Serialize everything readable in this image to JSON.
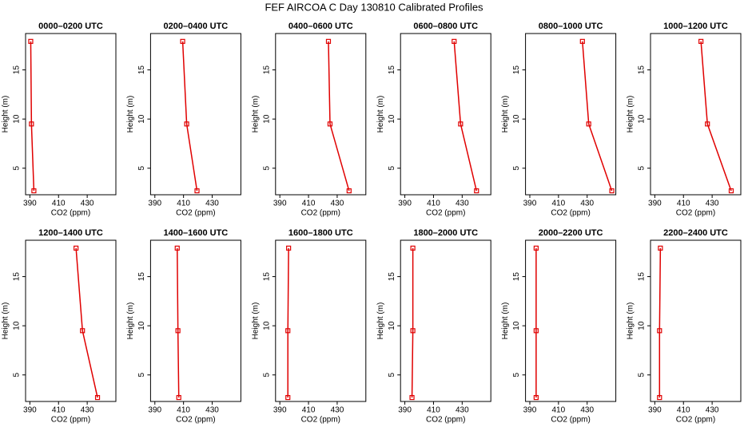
{
  "title": "FEF AIRCOA C  Day 130810  Calibrated Profiles",
  "chart_data": [
    {
      "type": "line",
      "title": "0000–0200 UTC",
      "x": [
        390.6,
        391.1,
        392.8
      ],
      "values": [
        17.9,
        9.5,
        2.7
      ],
      "color": "#e00000",
      "xlabel": "CO2 (ppm)",
      "ylabel": "Height (m)",
      "xlim": [
        387,
        450
      ],
      "ylim": [
        2.3,
        18.7
      ],
      "xticks": [
        390,
        410,
        430
      ],
      "yticks": [
        5,
        10,
        15
      ]
    },
    {
      "type": "line",
      "title": "0200–0400 UTC",
      "x": [
        409.4,
        412.2,
        419.4
      ],
      "values": [
        17.9,
        9.5,
        2.7
      ],
      "color": "#e00000",
      "xlabel": "CO2 (ppm)",
      "ylabel": "Height (m)",
      "xlim": [
        387,
        450
      ],
      "ylim": [
        2.3,
        18.7
      ],
      "xticks": [
        390,
        410,
        430
      ],
      "yticks": [
        5,
        10,
        15
      ]
    },
    {
      "type": "line",
      "title": "0400–0600 UTC",
      "x": [
        423.9,
        425,
        438.3
      ],
      "values": [
        17.9,
        9.5,
        2.7
      ],
      "color": "#e00000",
      "xlabel": "CO2 (ppm)",
      "ylabel": "Height (m)",
      "xlim": [
        387,
        450
      ],
      "ylim": [
        2.3,
        18.7
      ],
      "xticks": [
        390,
        410,
        430
      ],
      "yticks": [
        5,
        10,
        15
      ]
    },
    {
      "type": "line",
      "title": "0600–0800 UTC",
      "x": [
        424.4,
        428.9,
        440
      ],
      "values": [
        17.9,
        9.5,
        2.7
      ],
      "color": "#e00000",
      "xlabel": "CO2 (ppm)",
      "ylabel": "Height (m)",
      "xlim": [
        387,
        450
      ],
      "ylim": [
        2.3,
        18.7
      ],
      "xticks": [
        390,
        410,
        430
      ],
      "yticks": [
        5,
        10,
        15
      ]
    },
    {
      "type": "line",
      "title": "0800–1000 UTC",
      "x": [
        426.7,
        431.1,
        447.2
      ],
      "values": [
        17.9,
        9.5,
        2.7
      ],
      "color": "#e00000",
      "xlabel": "CO2 (ppm)",
      "ylabel": "Height (m)",
      "xlim": [
        387,
        450
      ],
      "ylim": [
        2.3,
        18.7
      ],
      "xticks": [
        390,
        410,
        430
      ],
      "yticks": [
        5,
        10,
        15
      ]
    },
    {
      "type": "line",
      "title": "1000–1200 UTC",
      "x": [
        422.2,
        426.7,
        443.3
      ],
      "values": [
        17.9,
        9.5,
        2.7
      ],
      "color": "#e00000",
      "xlabel": "CO2 (ppm)",
      "ylabel": "Height (m)",
      "xlim": [
        387,
        450
      ],
      "ylim": [
        2.3,
        18.7
      ],
      "xticks": [
        390,
        410,
        430
      ],
      "yticks": [
        5,
        10,
        15
      ]
    },
    {
      "type": "line",
      "title": "1200–1400 UTC",
      "x": [
        422.2,
        426.7,
        437.2
      ],
      "values": [
        17.9,
        9.5,
        2.7
      ],
      "color": "#e00000",
      "xlabel": "CO2 (ppm)",
      "ylabel": "Height (m)",
      "xlim": [
        387,
        450
      ],
      "ylim": [
        2.3,
        18.7
      ],
      "xticks": [
        390,
        410,
        430
      ],
      "yticks": [
        5,
        10,
        15
      ]
    },
    {
      "type": "line",
      "title": "1400–1600 UTC",
      "x": [
        405.6,
        406.1,
        406.7
      ],
      "values": [
        17.9,
        9.5,
        2.7
      ],
      "color": "#e00000",
      "xlabel": "CO2 (ppm)",
      "ylabel": "Height (m)",
      "xlim": [
        387,
        450
      ],
      "ylim": [
        2.3,
        18.7
      ],
      "xticks": [
        390,
        410,
        430
      ],
      "yticks": [
        5,
        10,
        15
      ]
    },
    {
      "type": "line",
      "title": "1600–1800 UTC",
      "x": [
        396.1,
        395.6,
        395.6
      ],
      "values": [
        17.9,
        9.5,
        2.7
      ],
      "color": "#e00000",
      "xlabel": "CO2 (ppm)",
      "ylabel": "Height (m)",
      "xlim": [
        387,
        450
      ],
      "ylim": [
        2.3,
        18.7
      ],
      "xticks": [
        390,
        410,
        430
      ],
      "yticks": [
        5,
        10,
        15
      ]
    },
    {
      "type": "line",
      "title": "1800–2000 UTC",
      "x": [
        395.6,
        395.6,
        395
      ],
      "values": [
        17.9,
        9.5,
        2.7
      ],
      "color": "#e00000",
      "xlabel": "CO2 (ppm)",
      "ylabel": "Height (m)",
      "xlim": [
        387,
        450
      ],
      "ylim": [
        2.3,
        18.7
      ],
      "xticks": [
        390,
        410,
        430
      ],
      "yticks": [
        5,
        10,
        15
      ]
    },
    {
      "type": "line",
      "title": "2000–2200 UTC",
      "x": [
        394.4,
        394.4,
        394.4
      ],
      "values": [
        17.9,
        9.5,
        2.7
      ],
      "color": "#e00000",
      "xlabel": "CO2 (ppm)",
      "ylabel": "Height (m)",
      "xlim": [
        387,
        450
      ],
      "ylim": [
        2.3,
        18.7
      ],
      "xticks": [
        390,
        410,
        430
      ],
      "yticks": [
        5,
        10,
        15
      ]
    },
    {
      "type": "line",
      "title": "2200–2400 UTC",
      "x": [
        393.9,
        393.3,
        393.3
      ],
      "values": [
        17.9,
        9.5,
        2.7
      ],
      "color": "#e00000",
      "xlabel": "CO2 (ppm)",
      "ylabel": "Height (m)",
      "xlim": [
        387,
        450
      ],
      "ylim": [
        2.3,
        18.7
      ],
      "xticks": [
        390,
        410,
        430
      ],
      "yticks": [
        5,
        10,
        15
      ]
    }
  ]
}
